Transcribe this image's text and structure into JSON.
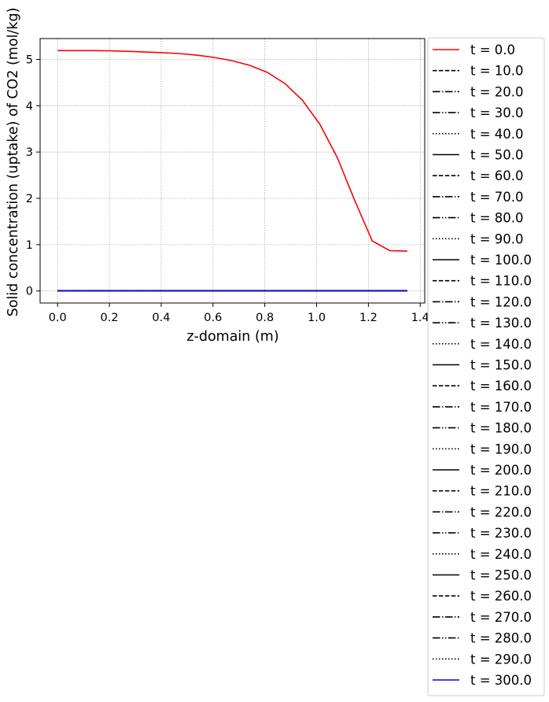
{
  "chart_data": {
    "type": "line",
    "title": "",
    "xlabel": "z-domain (m)",
    "ylabel": "Solid concentration (uptake) of CO2 (mol/kg)",
    "xlim": [
      -0.0675,
      1.4175
    ],
    "ylim": [
      -0.26,
      5.45
    ],
    "xticks": [
      0.0,
      0.2,
      0.4,
      0.6,
      0.8,
      1.0,
      1.2,
      1.4
    ],
    "xtick_labels": [
      "0.0",
      "0.2",
      "0.4",
      "0.6",
      "0.8",
      "1.0",
      "1.2",
      "1.4"
    ],
    "yticks": [
      0,
      1,
      2,
      3,
      4,
      5
    ],
    "ytick_labels": [
      "0",
      "1",
      "2",
      "3",
      "4",
      "5"
    ],
    "grid": true,
    "legend_placement": "outside-right",
    "x": [
      0.0,
      0.0675,
      0.135,
      0.2025,
      0.27,
      0.3375,
      0.405,
      0.4725,
      0.54,
      0.6075,
      0.675,
      0.7425,
      0.81,
      0.8775,
      0.945,
      1.0125,
      1.08,
      1.1475,
      1.215,
      1.2825,
      1.35
    ],
    "series": [
      {
        "name": "t = 0.0",
        "color": "#ff0000",
        "dash": "solid",
        "values": [
          5.19,
          5.19,
          5.19,
          5.185,
          5.175,
          5.16,
          5.145,
          5.125,
          5.09,
          5.04,
          4.97,
          4.87,
          4.72,
          4.48,
          4.12,
          3.6,
          2.88,
          1.95,
          1.08,
          0.87,
          0.86
        ]
      },
      {
        "name": "t = 10.0",
        "color": "#000000",
        "dash": "dashed",
        "values": [
          0,
          0,
          0,
          0,
          0,
          0,
          0,
          0,
          0,
          0,
          0,
          0,
          0,
          0,
          0,
          0,
          0,
          0,
          0,
          0,
          0
        ]
      },
      {
        "name": "t = 20.0",
        "color": "#000000",
        "dash": "dashdot",
        "values": [
          0,
          0,
          0,
          0,
          0,
          0,
          0,
          0,
          0,
          0,
          0,
          0,
          0,
          0,
          0,
          0,
          0,
          0,
          0,
          0,
          0
        ]
      },
      {
        "name": "t = 30.0",
        "color": "#000000",
        "dash": "dashdotdot",
        "values": [
          0,
          0,
          0,
          0,
          0,
          0,
          0,
          0,
          0,
          0,
          0,
          0,
          0,
          0,
          0,
          0,
          0,
          0,
          0,
          0,
          0
        ]
      },
      {
        "name": "t = 40.0",
        "color": "#000000",
        "dash": "dotted",
        "values": [
          0,
          0,
          0,
          0,
          0,
          0,
          0,
          0,
          0,
          0,
          0,
          0,
          0,
          0,
          0,
          0,
          0,
          0,
          0,
          0,
          0
        ]
      },
      {
        "name": "t = 50.0",
        "color": "#000000",
        "dash": "solid",
        "values": [
          0,
          0,
          0,
          0,
          0,
          0,
          0,
          0,
          0,
          0,
          0,
          0,
          0,
          0,
          0,
          0,
          0,
          0,
          0,
          0,
          0
        ]
      },
      {
        "name": "t = 60.0",
        "color": "#000000",
        "dash": "dashed",
        "values": [
          0,
          0,
          0,
          0,
          0,
          0,
          0,
          0,
          0,
          0,
          0,
          0,
          0,
          0,
          0,
          0,
          0,
          0,
          0,
          0,
          0
        ]
      },
      {
        "name": "t = 70.0",
        "color": "#000000",
        "dash": "dashdot",
        "values": [
          0,
          0,
          0,
          0,
          0,
          0,
          0,
          0,
          0,
          0,
          0,
          0,
          0,
          0,
          0,
          0,
          0,
          0,
          0,
          0,
          0
        ]
      },
      {
        "name": "t = 80.0",
        "color": "#000000",
        "dash": "dashdotdot",
        "values": [
          0,
          0,
          0,
          0,
          0,
          0,
          0,
          0,
          0,
          0,
          0,
          0,
          0,
          0,
          0,
          0,
          0,
          0,
          0,
          0,
          0
        ]
      },
      {
        "name": "t = 90.0",
        "color": "#000000",
        "dash": "dotted",
        "values": [
          0,
          0,
          0,
          0,
          0,
          0,
          0,
          0,
          0,
          0,
          0,
          0,
          0,
          0,
          0,
          0,
          0,
          0,
          0,
          0,
          0
        ]
      },
      {
        "name": "t = 100.0",
        "color": "#000000",
        "dash": "solid",
        "values": [
          0,
          0,
          0,
          0,
          0,
          0,
          0,
          0,
          0,
          0,
          0,
          0,
          0,
          0,
          0,
          0,
          0,
          0,
          0,
          0,
          0
        ]
      },
      {
        "name": "t = 110.0",
        "color": "#000000",
        "dash": "dashed",
        "values": [
          0,
          0,
          0,
          0,
          0,
          0,
          0,
          0,
          0,
          0,
          0,
          0,
          0,
          0,
          0,
          0,
          0,
          0,
          0,
          0,
          0
        ]
      },
      {
        "name": "t = 120.0",
        "color": "#000000",
        "dash": "dashdot",
        "values": [
          0,
          0,
          0,
          0,
          0,
          0,
          0,
          0,
          0,
          0,
          0,
          0,
          0,
          0,
          0,
          0,
          0,
          0,
          0,
          0,
          0
        ]
      },
      {
        "name": "t = 130.0",
        "color": "#000000",
        "dash": "dashdotdot",
        "values": [
          0,
          0,
          0,
          0,
          0,
          0,
          0,
          0,
          0,
          0,
          0,
          0,
          0,
          0,
          0,
          0,
          0,
          0,
          0,
          0,
          0
        ]
      },
      {
        "name": "t = 140.0",
        "color": "#000000",
        "dash": "dotted",
        "values": [
          0,
          0,
          0,
          0,
          0,
          0,
          0,
          0,
          0,
          0,
          0,
          0,
          0,
          0,
          0,
          0,
          0,
          0,
          0,
          0,
          0
        ]
      },
      {
        "name": "t = 150.0",
        "color": "#000000",
        "dash": "solid",
        "values": [
          0,
          0,
          0,
          0,
          0,
          0,
          0,
          0,
          0,
          0,
          0,
          0,
          0,
          0,
          0,
          0,
          0,
          0,
          0,
          0,
          0
        ]
      },
      {
        "name": "t = 160.0",
        "color": "#000000",
        "dash": "dashed",
        "values": [
          0,
          0,
          0,
          0,
          0,
          0,
          0,
          0,
          0,
          0,
          0,
          0,
          0,
          0,
          0,
          0,
          0,
          0,
          0,
          0,
          0
        ]
      },
      {
        "name": "t = 170.0",
        "color": "#000000",
        "dash": "dashdot",
        "values": [
          0,
          0,
          0,
          0,
          0,
          0,
          0,
          0,
          0,
          0,
          0,
          0,
          0,
          0,
          0,
          0,
          0,
          0,
          0,
          0,
          0
        ]
      },
      {
        "name": "t = 180.0",
        "color": "#000000",
        "dash": "dashdotdot",
        "values": [
          0,
          0,
          0,
          0,
          0,
          0,
          0,
          0,
          0,
          0,
          0,
          0,
          0,
          0,
          0,
          0,
          0,
          0,
          0,
          0,
          0
        ]
      },
      {
        "name": "t = 190.0",
        "color": "#000000",
        "dash": "dotted",
        "values": [
          0,
          0,
          0,
          0,
          0,
          0,
          0,
          0,
          0,
          0,
          0,
          0,
          0,
          0,
          0,
          0,
          0,
          0,
          0,
          0,
          0
        ]
      },
      {
        "name": "t = 200.0",
        "color": "#000000",
        "dash": "solid",
        "values": [
          0,
          0,
          0,
          0,
          0,
          0,
          0,
          0,
          0,
          0,
          0,
          0,
          0,
          0,
          0,
          0,
          0,
          0,
          0,
          0,
          0
        ]
      },
      {
        "name": "t = 210.0",
        "color": "#000000",
        "dash": "dashed",
        "values": [
          0,
          0,
          0,
          0,
          0,
          0,
          0,
          0,
          0,
          0,
          0,
          0,
          0,
          0,
          0,
          0,
          0,
          0,
          0,
          0,
          0
        ]
      },
      {
        "name": "t = 220.0",
        "color": "#000000",
        "dash": "dashdot",
        "values": [
          0,
          0,
          0,
          0,
          0,
          0,
          0,
          0,
          0,
          0,
          0,
          0,
          0,
          0,
          0,
          0,
          0,
          0,
          0,
          0,
          0
        ]
      },
      {
        "name": "t = 230.0",
        "color": "#000000",
        "dash": "dashdotdot",
        "values": [
          0,
          0,
          0,
          0,
          0,
          0,
          0,
          0,
          0,
          0,
          0,
          0,
          0,
          0,
          0,
          0,
          0,
          0,
          0,
          0,
          0
        ]
      },
      {
        "name": "t = 240.0",
        "color": "#000000",
        "dash": "dotted",
        "values": [
          0,
          0,
          0,
          0,
          0,
          0,
          0,
          0,
          0,
          0,
          0,
          0,
          0,
          0,
          0,
          0,
          0,
          0,
          0,
          0,
          0
        ]
      },
      {
        "name": "t = 250.0",
        "color": "#000000",
        "dash": "solid",
        "values": [
          0,
          0,
          0,
          0,
          0,
          0,
          0,
          0,
          0,
          0,
          0,
          0,
          0,
          0,
          0,
          0,
          0,
          0,
          0,
          0,
          0
        ]
      },
      {
        "name": "t = 260.0",
        "color": "#000000",
        "dash": "dashed",
        "values": [
          0,
          0,
          0,
          0,
          0,
          0,
          0,
          0,
          0,
          0,
          0,
          0,
          0,
          0,
          0,
          0,
          0,
          0,
          0,
          0,
          0
        ]
      },
      {
        "name": "t = 270.0",
        "color": "#000000",
        "dash": "dashdot",
        "values": [
          0,
          0,
          0,
          0,
          0,
          0,
          0,
          0,
          0,
          0,
          0,
          0,
          0,
          0,
          0,
          0,
          0,
          0,
          0,
          0,
          0
        ]
      },
      {
        "name": "t = 280.0",
        "color": "#000000",
        "dash": "dashdotdot",
        "values": [
          0,
          0,
          0,
          0,
          0,
          0,
          0,
          0,
          0,
          0,
          0,
          0,
          0,
          0,
          0,
          0,
          0,
          0,
          0,
          0,
          0
        ]
      },
      {
        "name": "t = 290.0",
        "color": "#000000",
        "dash": "dotted",
        "values": [
          0,
          0,
          0,
          0,
          0,
          0,
          0,
          0,
          0,
          0,
          0,
          0,
          0,
          0,
          0,
          0,
          0,
          0,
          0,
          0,
          0
        ]
      },
      {
        "name": "t = 300.0",
        "color": "#0000ff",
        "dash": "solid",
        "values": [
          0,
          0,
          0,
          0,
          0,
          0,
          0,
          0,
          0,
          0,
          0,
          0,
          0,
          0,
          0,
          0,
          0,
          0,
          0,
          0,
          0
        ]
      }
    ]
  }
}
